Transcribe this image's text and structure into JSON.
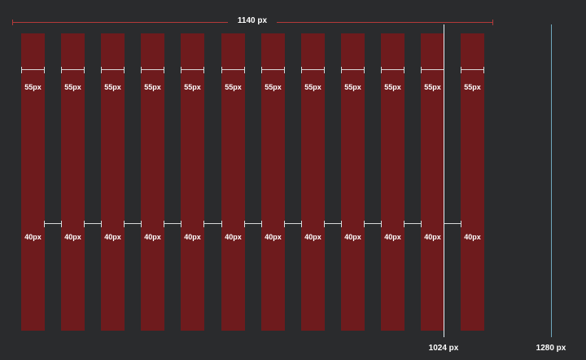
{
  "container": {
    "label": "1140 px",
    "color": "#b33a3a"
  },
  "grid": {
    "column_count": 12,
    "column_color": "#6e1b1d",
    "column_label": "55px",
    "gutter_count": 11,
    "gutter_label": "40px"
  },
  "breakpoints": [
    {
      "label": "1024 px",
      "color": "#e6f0f5"
    },
    {
      "label": "1280 px",
      "color": "#6fa8bd"
    }
  ],
  "background_color": "#2a2b2d"
}
